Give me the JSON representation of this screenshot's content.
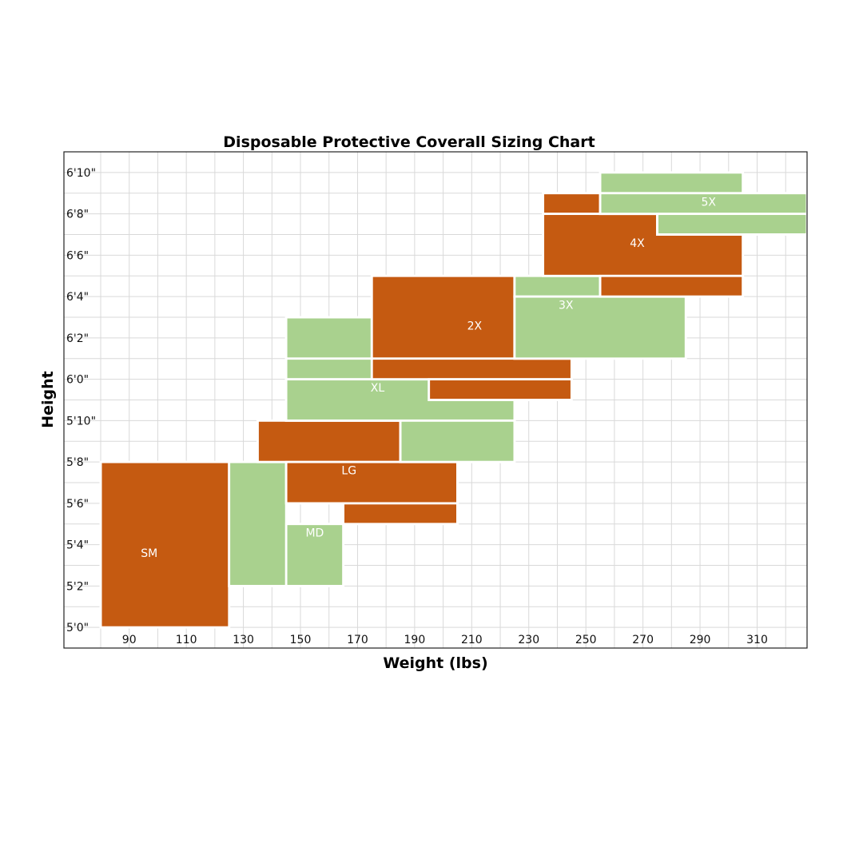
{
  "chart_data": {
    "type": "heatmap",
    "title": "Disposable Protective Coverall Sizing Chart",
    "xlabel": "Weight (lbs)",
    "ylabel": "Height",
    "x_ticks": [
      90,
      110,
      130,
      150,
      170,
      190,
      210,
      230,
      250,
      270,
      290,
      310
    ],
    "y_tick_labels": [
      "6'10\"",
      "6'8\"",
      "6'6\"",
      "6'4\"",
      "6'2\"",
      "6'0\"",
      "5'10\"",
      "5'8\"",
      "5'6\"",
      "5'4\"",
      "5'2\"",
      "5'0\""
    ],
    "y_ticks_inches": [
      82,
      80,
      78,
      76,
      74,
      72,
      70,
      68,
      66,
      64,
      62,
      60
    ],
    "xlim": [
      77.5,
      327.5
    ],
    "ylim_inches": [
      59,
      83
    ],
    "grid": true,
    "colors": {
      "orange": "#c55a11",
      "green": "#a9d18e",
      "grid": "#d9d9d9"
    },
    "zones": [
      {
        "name": "SM",
        "color": "orange",
        "label_at": [
          97,
          63.4
        ],
        "rects": [
          {
            "w": [
              80,
              125
            ],
            "h": [
              60,
              68
            ]
          }
        ]
      },
      {
        "name": "MD",
        "color": "green",
        "label_at": [
          155,
          64.4
        ],
        "rects": [
          {
            "w": [
              125,
              145
            ],
            "h": [
              62,
              68
            ]
          },
          {
            "w": [
              145,
              165
            ],
            "h": [
              62,
              65
            ]
          }
        ]
      },
      {
        "name": "LG",
        "color": "orange",
        "label_at": [
          167,
          67.4
        ],
        "rects": [
          {
            "w": [
              135,
              185
            ],
            "h": [
              68,
              70
            ]
          },
          {
            "w": [
              145,
              205
            ],
            "h": [
              66,
              68
            ]
          },
          {
            "w": [
              165,
              205
            ],
            "h": [
              65,
              66
            ]
          }
        ]
      },
      {
        "name": "XL",
        "color": "green",
        "label_at": [
          177,
          71.4
        ],
        "rects": [
          {
            "w": [
              145,
              175
            ],
            "h": [
              73,
              75
            ]
          },
          {
            "w": [
              145,
              195
            ],
            "h": [
              72,
              73
            ]
          },
          {
            "w": [
              145,
              225
            ],
            "h": [
              70,
              72
            ]
          },
          {
            "w": [
              185,
              225
            ],
            "h": [
              68,
              70
            ]
          }
        ]
      },
      {
        "name": "2X",
        "color": "orange",
        "label_at": [
          211,
          74.4
        ],
        "rects": [
          {
            "w": [
              175,
              225
            ],
            "h": [
              73,
              77
            ]
          },
          {
            "w": [
              175,
              245
            ],
            "h": [
              72,
              73
            ]
          },
          {
            "w": [
              195,
              245
            ],
            "h": [
              71,
              72
            ]
          }
        ]
      },
      {
        "name": "3X",
        "color": "green",
        "label_at": [
          243,
          75.4
        ],
        "rects": [
          {
            "w": [
              225,
              255
            ],
            "h": [
              76,
              77
            ]
          },
          {
            "w": [
              225,
              285
            ],
            "h": [
              73,
              76
            ]
          }
        ]
      },
      {
        "name": "4X",
        "color": "orange",
        "label_at": [
          268,
          78.4
        ],
        "rects": [
          {
            "w": [
              235,
              275
            ],
            "h": [
              80,
              81
            ]
          },
          {
            "w": [
              235,
              305
            ],
            "h": [
              77,
              80
            ]
          },
          {
            "w": [
              255,
              305
            ],
            "h": [
              76,
              77
            ]
          }
        ]
      },
      {
        "name": "5X",
        "color": "green",
        "label_at": [
          293,
          80.4
        ],
        "rects": [
          {
            "w": [
              255,
              305
            ],
            "h": [
              81,
              82
            ]
          },
          {
            "w": [
              255,
              327.5
            ],
            "h": [
              80,
              81
            ]
          },
          {
            "w": [
              275,
              327.5
            ],
            "h": [
              79,
              80
            ]
          }
        ]
      }
    ]
  }
}
